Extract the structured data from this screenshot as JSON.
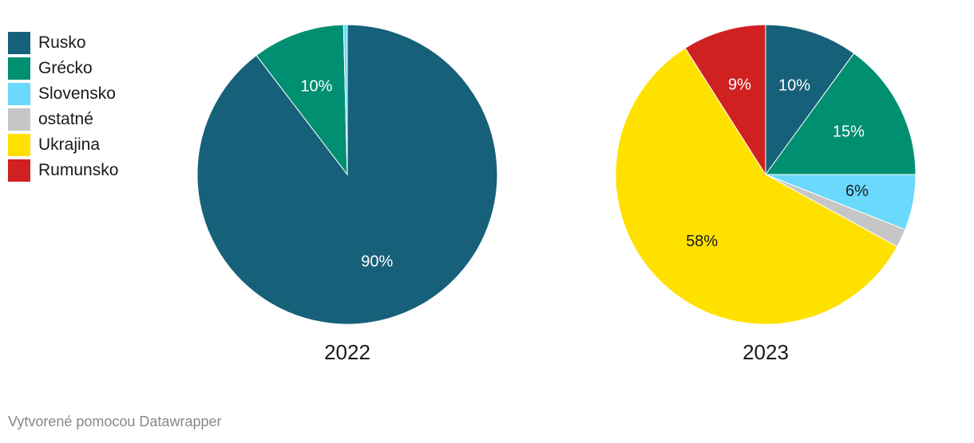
{
  "chart_data": {
    "type": "pie",
    "categories": [
      "Rusko",
      "Grécko",
      "Slovensko",
      "ostatné",
      "Ukrajina",
      "Rumunsko"
    ],
    "colors": [
      "#176079",
      "#008f71",
      "#6ad9fb",
      "#c6c6c6",
      "#ffe100",
      "#cf2121"
    ],
    "label_colors": [
      "#ffffff",
      "#ffffff",
      "#1a1a1a",
      "#1a1a1a",
      "#1a1a1a",
      "#ffffff"
    ],
    "series": [
      {
        "name": "2022",
        "values": [
          90,
          10,
          0.4,
          0,
          0,
          0
        ],
        "labels": [
          "90%",
          "10%",
          "",
          "",
          "",
          ""
        ]
      },
      {
        "name": "2023",
        "values": [
          10,
          15,
          6,
          2,
          58,
          9
        ],
        "labels": [
          "10%",
          "15%",
          "6%",
          "",
          "58%",
          "9%"
        ]
      }
    ],
    "legend_position": "top-left"
  },
  "footer": "Vytvorené pomocou Datawrapper"
}
